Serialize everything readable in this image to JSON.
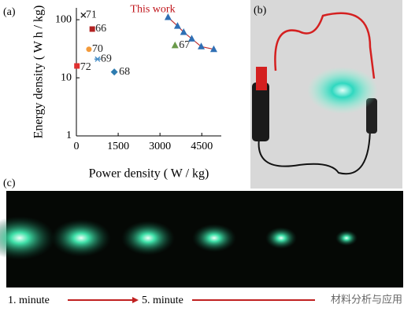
{
  "panel_labels": [
    "(a)",
    "(b)",
    "(c)"
  ],
  "chart_data": {
    "type": "scatter",
    "xlabel": "Power density ( W / kg)",
    "ylabel": "Energy density ( W h / kg)",
    "xlim": [
      0,
      5200
    ],
    "xticks": [
      0,
      1500,
      3000,
      4500
    ],
    "ylim": [
      1,
      160
    ],
    "yticks": [
      1,
      10,
      100
    ],
    "log_y": true,
    "series": [
      {
        "name": "71",
        "color": "#222222",
        "marker": "x",
        "x": [
          250
        ],
        "values": [
          120
        ]
      },
      {
        "name": "66",
        "color": "#b22222",
        "marker": "square",
        "x": [
          570
        ],
        "values": [
          69
        ]
      },
      {
        "name": "70",
        "color": "#f39a3a",
        "marker": "circle",
        "x": [
          450
        ],
        "values": [
          31
        ]
      },
      {
        "name": "69",
        "color": "#4a90c8",
        "marker": "star",
        "x": [
          760
        ],
        "values": [
          21
        ]
      },
      {
        "name": "72",
        "color": "#e03030",
        "marker": "square",
        "x": [
          20
        ],
        "values": [
          16
        ]
      },
      {
        "name": "68",
        "color": "#2e7cb0",
        "marker": "diamond",
        "x": [
          1360
        ],
        "values": [
          12.6
        ]
      },
      {
        "name": "67",
        "color": "#6a9a4a",
        "marker": "triangle",
        "x": [
          3540
        ],
        "values": [
          36
        ]
      },
      {
        "name": "This work",
        "color": "#2f6fb4",
        "line_color": "#c03030",
        "label_color": "#c0141a",
        "marker": "triangle",
        "x": [
          3290,
          3630,
          3850,
          4140,
          4480,
          4930
        ],
        "values": [
          110,
          78,
          61,
          47,
          34.5,
          31
        ]
      }
    ]
  },
  "timeline": [
    "1. minute",
    "5. minute"
  ],
  "watermark": "材料分析与应用"
}
